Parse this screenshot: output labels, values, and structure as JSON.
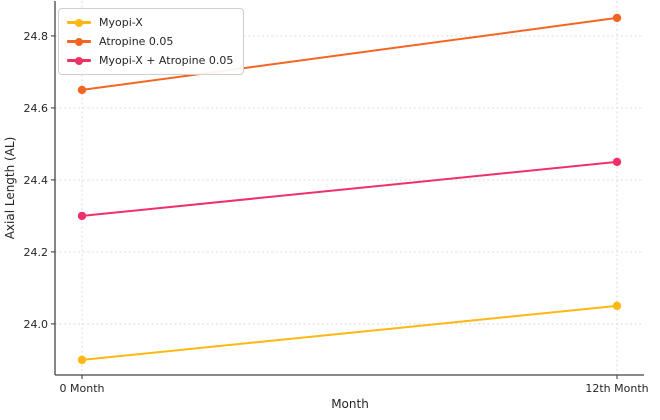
{
  "chart_data": {
    "type": "line",
    "title": "",
    "xlabel": "Month",
    "ylabel": "Axial Length (AL)",
    "categories": [
      "0 Month",
      "12th Month"
    ],
    "series": [
      {
        "name": "Myopi-X",
        "color": "#FDB813",
        "values": [
          23.9,
          24.05
        ]
      },
      {
        "name": "Atropine 0.05",
        "color": "#F46523",
        "values": [
          24.65,
          24.85
        ]
      },
      {
        "name": "Myopi-X + Atropine 0.05",
        "color": "#EE3269",
        "values": [
          24.3,
          24.45
        ]
      }
    ],
    "yticks": [
      24.0,
      24.2,
      24.4,
      24.6,
      24.8
    ],
    "ytick_decimals": 1,
    "ylim": [
      23.858,
      24.897
    ],
    "grid": true,
    "legend_position": "upper-left",
    "grid_color": "#d9d9d9",
    "spine_color": "#444444",
    "tick_color": "#444444",
    "text_color": "#262626"
  }
}
